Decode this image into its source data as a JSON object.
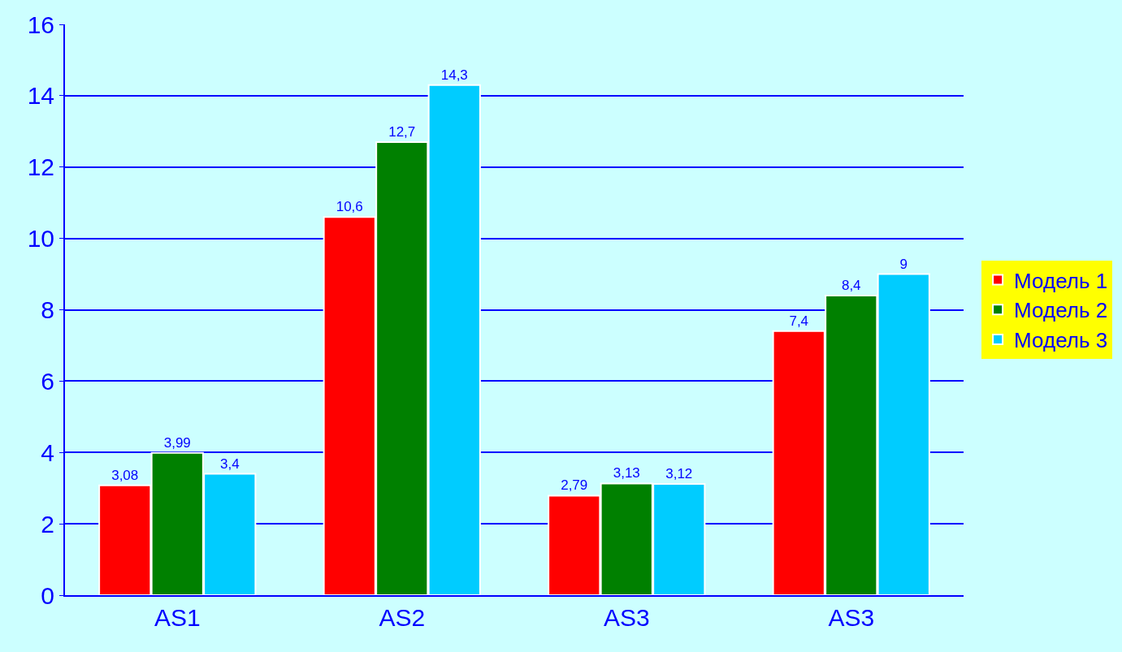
{
  "chart_data": {
    "type": "bar",
    "categories": [
      "AS1",
      "AS2",
      "AS3",
      "AS3"
    ],
    "series": [
      {
        "name": "Модель 1",
        "color": "#ff0000",
        "values": [
          3.08,
          10.6,
          2.79,
          7.4
        ],
        "value_labels": [
          "3,08",
          "10,6",
          "2,79",
          "7,4"
        ]
      },
      {
        "name": "Модель 2",
        "color": "#008000",
        "values": [
          3.99,
          12.7,
          3.13,
          8.4
        ],
        "value_labels": [
          "3,99",
          "12,7",
          "3,13",
          "8,4"
        ]
      },
      {
        "name": "Модель 3",
        "color": "#00ccff",
        "values": [
          3.4,
          14.3,
          3.12,
          9
        ],
        "value_labels": [
          "3,4",
          "14,3",
          "3,12",
          "9"
        ]
      }
    ],
    "ylim": [
      0,
      16
    ],
    "yticks": [
      0,
      2,
      4,
      6,
      8,
      10,
      12,
      14,
      16
    ],
    "grid": "y",
    "legend": "right"
  }
}
